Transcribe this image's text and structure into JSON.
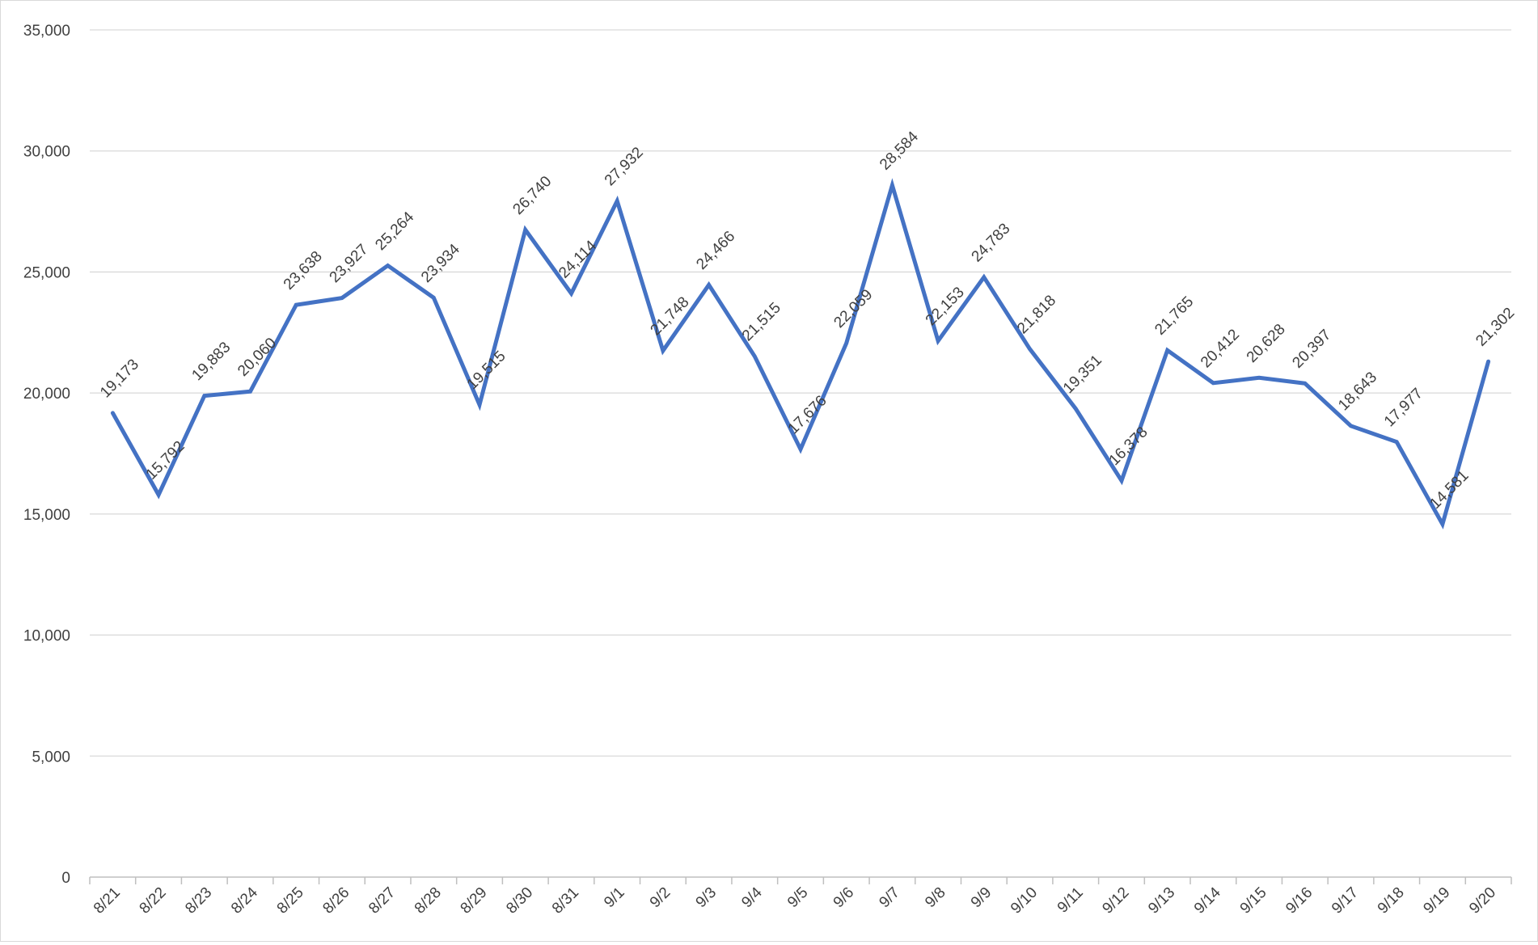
{
  "chart_data": {
    "type": "line",
    "title": "",
    "xlabel": "",
    "ylabel": "",
    "ylim": [
      0,
      35000
    ],
    "yticks": [
      0,
      5000,
      10000,
      15000,
      20000,
      25000,
      30000,
      35000
    ],
    "ytick_labels": [
      "0",
      "5,000",
      "10,000",
      "15,000",
      "20,000",
      "25,000",
      "30,000",
      "35,000"
    ],
    "grid": true,
    "legend": "none",
    "line_color": "#4472C4",
    "categories": [
      "8/21",
      "8/22",
      "8/23",
      "8/24",
      "8/25",
      "8/26",
      "8/27",
      "8/28",
      "8/29",
      "8/30",
      "8/31",
      "9/1",
      "9/2",
      "9/3",
      "9/4",
      "9/5",
      "9/6",
      "9/7",
      "9/8",
      "9/9",
      "9/10",
      "9/11",
      "9/12",
      "9/13",
      "9/14",
      "9/15",
      "9/16",
      "9/17",
      "9/18",
      "9/19",
      "9/20"
    ],
    "series": [
      {
        "values": [
          19173,
          15792,
          19883,
          20060,
          23638,
          23927,
          25264,
          23934,
          19515,
          26740,
          24114,
          27932,
          21748,
          24466,
          21515,
          17676,
          22059,
          28584,
          22153,
          24783,
          21818,
          19351,
          16378,
          21765,
          20412,
          20628,
          20397,
          18643,
          17977,
          14581,
          21302
        ],
        "data_labels": [
          "19,173",
          "15,792",
          "19,883",
          "20,060",
          "23,638",
          "23,927",
          "25,264",
          "23,934",
          "19,515",
          "26,740",
          "24,114",
          "27,932",
          "21,748",
          "24,466",
          "21,515",
          "17,676",
          "22,059",
          "28,584",
          "22,153",
          "24,783",
          "21,818",
          "19,351",
          "16,378",
          "21,765",
          "20,412",
          "20,628",
          "20,397",
          "18,643",
          "17,977",
          "14,581",
          "21,302"
        ]
      }
    ]
  }
}
